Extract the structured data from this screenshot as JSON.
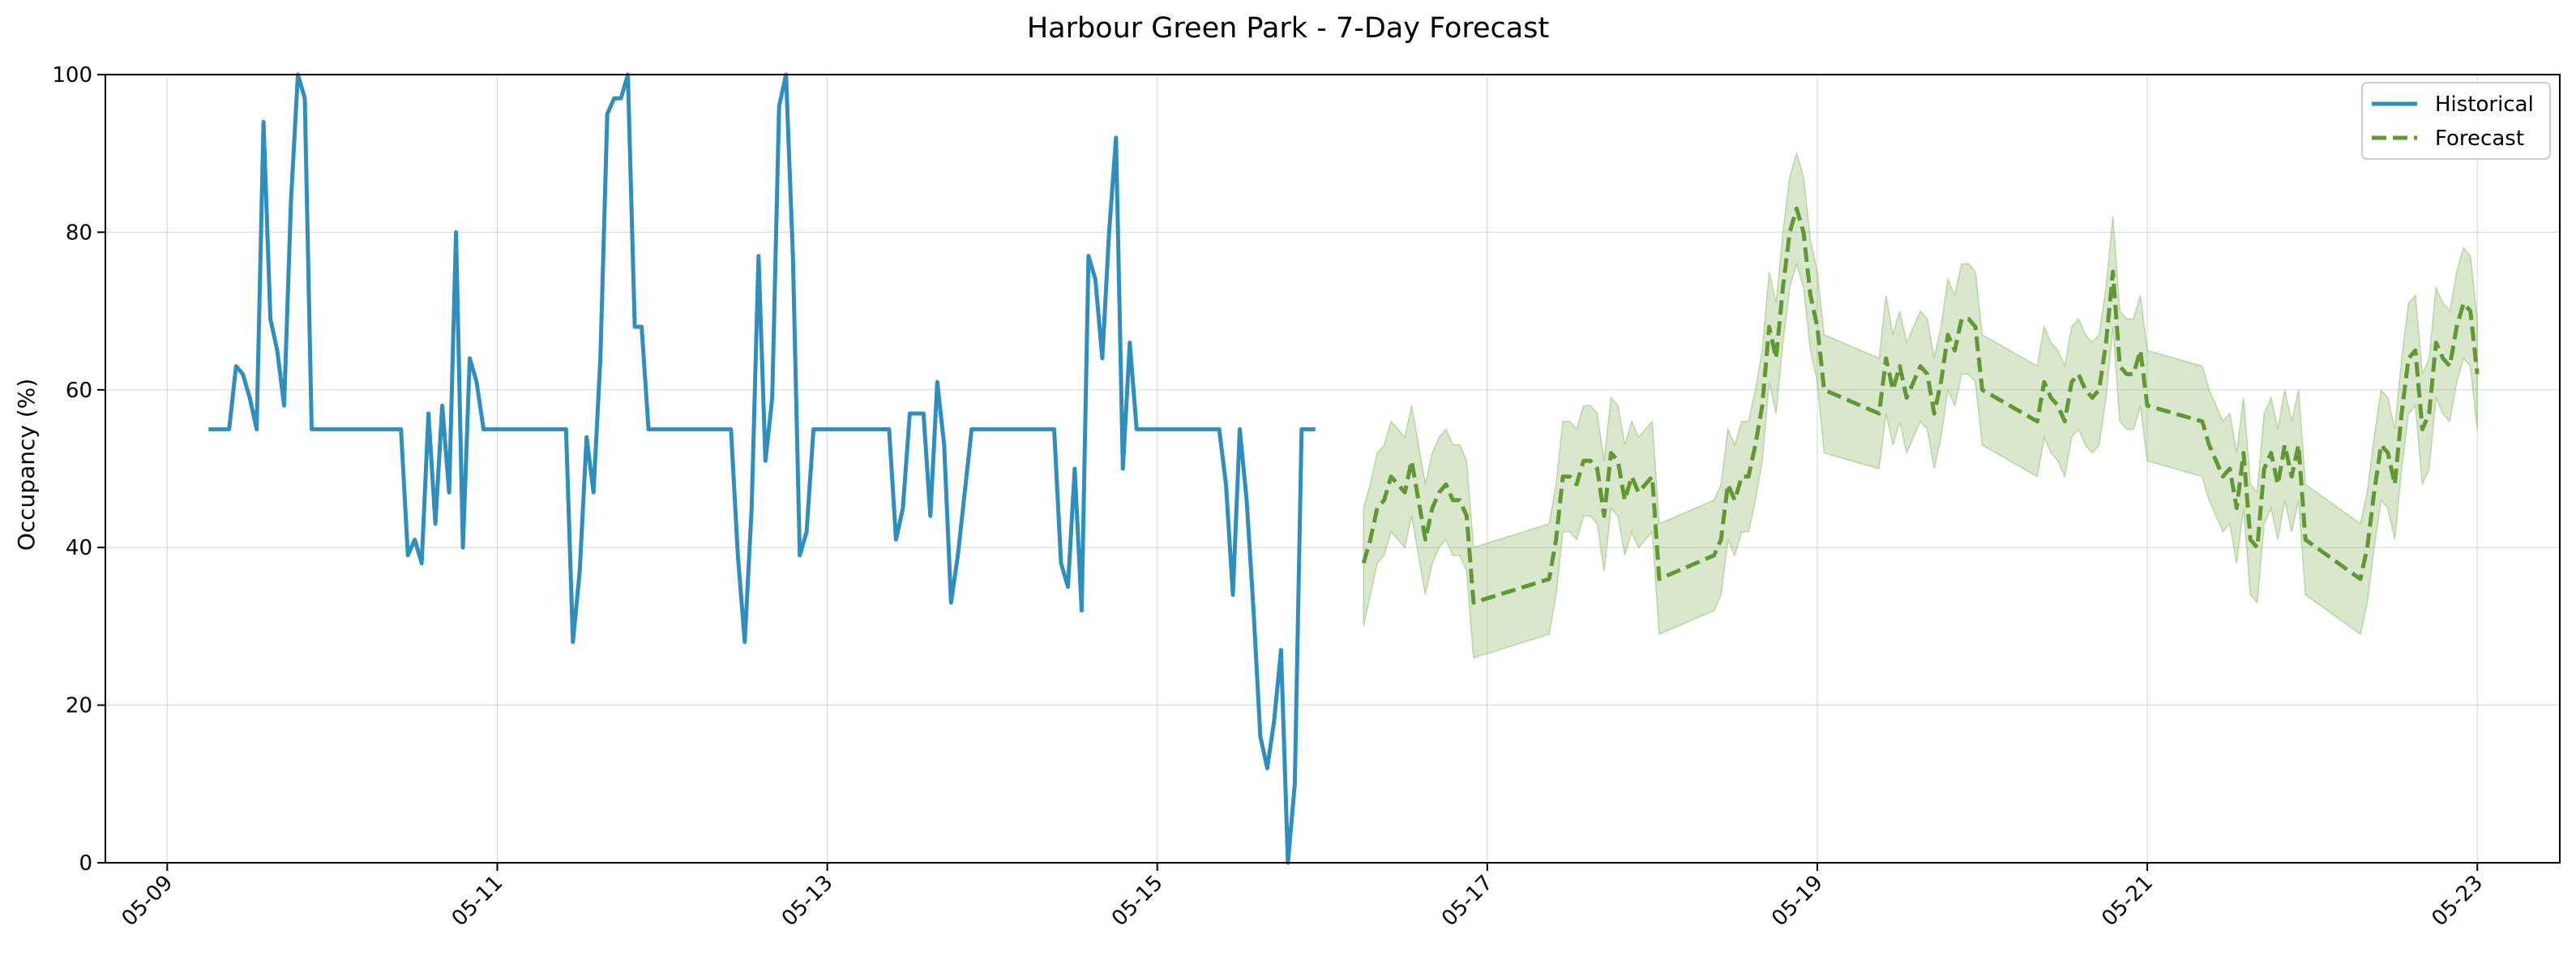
{
  "chart_data": {
    "type": "line",
    "title": "Harbour Green Park - 7-Day Forecast",
    "xlabel": "",
    "ylabel": "Occupancy (%)",
    "xlim": [
      "2025-05-08T15:00",
      "2025-05-23T12:00"
    ],
    "ylim": [
      0,
      100
    ],
    "grid": true,
    "legend_position": "top-right",
    "x_ticks": [
      "05-09",
      "05-11",
      "05-13",
      "05-15",
      "05-17",
      "05-19",
      "05-21",
      "05-23"
    ],
    "y_ticks": [
      0,
      20,
      40,
      60,
      80,
      100
    ],
    "colors": {
      "historical": "#2e8fbe",
      "forecast": "#629834",
      "band": "#8cb866"
    },
    "series": [
      {
        "name": "Historical",
        "style": "solid",
        "points": [
          [
            "2025-05-09T06:00",
            55
          ],
          [
            "2025-05-09T09:00",
            55
          ],
          [
            "2025-05-09T10:00",
            63
          ],
          [
            "2025-05-09T11:00",
            62
          ],
          [
            "2025-05-09T12:00",
            59
          ],
          [
            "2025-05-09T13:00",
            55
          ],
          [
            "2025-05-09T14:00",
            94
          ],
          [
            "2025-05-09T15:00",
            69
          ],
          [
            "2025-05-09T16:00",
            65
          ],
          [
            "2025-05-09T17:00",
            58
          ],
          [
            "2025-05-09T18:00",
            84
          ],
          [
            "2025-05-09T19:00",
            100
          ],
          [
            "2025-05-09T20:00",
            97
          ],
          [
            "2025-05-09T21:00",
            55
          ],
          [
            "2025-05-10T10:00",
            55
          ],
          [
            "2025-05-10T11:00",
            39
          ],
          [
            "2025-05-10T12:00",
            41
          ],
          [
            "2025-05-10T13:00",
            38
          ],
          [
            "2025-05-10T14:00",
            57
          ],
          [
            "2025-05-10T15:00",
            43
          ],
          [
            "2025-05-10T16:00",
            58
          ],
          [
            "2025-05-10T17:00",
            47
          ],
          [
            "2025-05-10T18:00",
            80
          ],
          [
            "2025-05-10T19:00",
            40
          ],
          [
            "2025-05-10T20:00",
            64
          ],
          [
            "2025-05-10T21:00",
            61
          ],
          [
            "2025-05-10T22:00",
            55
          ],
          [
            "2025-05-11T10:00",
            55
          ],
          [
            "2025-05-11T11:00",
            28
          ],
          [
            "2025-05-11T12:00",
            37
          ],
          [
            "2025-05-11T13:00",
            54
          ],
          [
            "2025-05-11T14:00",
            47
          ],
          [
            "2025-05-11T15:00",
            64
          ],
          [
            "2025-05-11T16:00",
            95
          ],
          [
            "2025-05-11T17:00",
            97
          ],
          [
            "2025-05-11T18:00",
            97
          ],
          [
            "2025-05-11T19:00",
            100
          ],
          [
            "2025-05-11T20:00",
            68
          ],
          [
            "2025-05-11T21:00",
            68
          ],
          [
            "2025-05-11T22:00",
            55
          ],
          [
            "2025-05-12T10:00",
            55
          ],
          [
            "2025-05-12T11:00",
            39
          ],
          [
            "2025-05-12T12:00",
            28
          ],
          [
            "2025-05-12T13:00",
            45
          ],
          [
            "2025-05-12T14:00",
            77
          ],
          [
            "2025-05-12T15:00",
            51
          ],
          [
            "2025-05-12T16:00",
            59
          ],
          [
            "2025-05-12T17:00",
            96
          ],
          [
            "2025-05-12T18:00",
            100
          ],
          [
            "2025-05-12T19:00",
            77
          ],
          [
            "2025-05-12T20:00",
            39
          ],
          [
            "2025-05-12T21:00",
            42
          ],
          [
            "2025-05-12T22:00",
            55
          ],
          [
            "2025-05-13T09:00",
            55
          ],
          [
            "2025-05-13T10:00",
            41
          ],
          [
            "2025-05-13T11:00",
            45
          ],
          [
            "2025-05-13T12:00",
            57
          ],
          [
            "2025-05-13T14:00",
            57
          ],
          [
            "2025-05-13T15:00",
            44
          ],
          [
            "2025-05-13T16:00",
            61
          ],
          [
            "2025-05-13T17:00",
            53
          ],
          [
            "2025-05-13T18:00",
            33
          ],
          [
            "2025-05-13T19:00",
            39
          ],
          [
            "2025-05-13T20:00",
            47
          ],
          [
            "2025-05-13T21:00",
            55
          ],
          [
            "2025-05-14T09:00",
            55
          ],
          [
            "2025-05-14T10:00",
            38
          ],
          [
            "2025-05-14T11:00",
            35
          ],
          [
            "2025-05-14T12:00",
            50
          ],
          [
            "2025-05-14T13:00",
            32
          ],
          [
            "2025-05-14T14:00",
            77
          ],
          [
            "2025-05-14T15:00",
            74
          ],
          [
            "2025-05-14T16:00",
            64
          ],
          [
            "2025-05-14T17:00",
            80
          ],
          [
            "2025-05-14T18:00",
            92
          ],
          [
            "2025-05-14T19:00",
            50
          ],
          [
            "2025-05-14T20:00",
            66
          ],
          [
            "2025-05-14T21:00",
            55
          ],
          [
            "2025-05-15T09:00",
            55
          ],
          [
            "2025-05-15T10:00",
            48
          ],
          [
            "2025-05-15T11:00",
            34
          ],
          [
            "2025-05-15T12:00",
            55
          ],
          [
            "2025-05-15T13:00",
            46
          ],
          [
            "2025-05-15T14:00",
            32
          ],
          [
            "2025-05-15T15:00",
            16
          ],
          [
            "2025-05-15T16:00",
            12
          ],
          [
            "2025-05-15T17:00",
            18
          ],
          [
            "2025-05-15T18:00",
            27
          ],
          [
            "2025-05-15T19:00",
            0
          ],
          [
            "2025-05-15T20:00",
            10
          ],
          [
            "2025-05-15T21:00",
            55
          ],
          [
            "2025-05-15T23:00",
            55
          ]
        ]
      },
      {
        "name": "Forecast",
        "style": "dashed",
        "points": [
          [
            "2025-05-16T06:00",
            38,
            30,
            45
          ],
          [
            "2025-05-16T07:00",
            41,
            34,
            48
          ],
          [
            "2025-05-16T08:00",
            45,
            38,
            52
          ],
          [
            "2025-05-16T09:00",
            46,
            39,
            53
          ],
          [
            "2025-05-16T10:00",
            49,
            42,
            56
          ],
          [
            "2025-05-16T11:00",
            48,
            41,
            55
          ],
          [
            "2025-05-16T12:00",
            47,
            40,
            54
          ],
          [
            "2025-05-16T13:00",
            51,
            44,
            58
          ],
          [
            "2025-05-16T14:00",
            46,
            39,
            53
          ],
          [
            "2025-05-16T15:00",
            41,
            34,
            48
          ],
          [
            "2025-05-16T16:00",
            45,
            38,
            52
          ],
          [
            "2025-05-16T17:00",
            47,
            40,
            54
          ],
          [
            "2025-05-16T18:00",
            48,
            41,
            55
          ],
          [
            "2025-05-16T19:00",
            46,
            39,
            53
          ],
          [
            "2025-05-16T20:00",
            46,
            39,
            53
          ],
          [
            "2025-05-16T21:00",
            44,
            37,
            51
          ],
          [
            "2025-05-16T22:00",
            33,
            26,
            40
          ],
          [
            "2025-05-17T09:00",
            36,
            29,
            43
          ],
          [
            "2025-05-17T10:00",
            41,
            34,
            48
          ],
          [
            "2025-05-17T11:00",
            49,
            42,
            56
          ],
          [
            "2025-05-17T12:00",
            49,
            42,
            56
          ],
          [
            "2025-05-17T13:00",
            48,
            41,
            55
          ],
          [
            "2025-05-17T14:00",
            51,
            44,
            58
          ],
          [
            "2025-05-17T15:00",
            51,
            44,
            58
          ],
          [
            "2025-05-17T16:00",
            50,
            43,
            57
          ],
          [
            "2025-05-17T17:00",
            44,
            37,
            51
          ],
          [
            "2025-05-17T18:00",
            52,
            45,
            59
          ],
          [
            "2025-05-17T19:00",
            51,
            44,
            58
          ],
          [
            "2025-05-17T20:00",
            46,
            39,
            53
          ],
          [
            "2025-05-17T21:00",
            49,
            42,
            56
          ],
          [
            "2025-05-17T22:00",
            47,
            40,
            54
          ],
          [
            "2025-05-17T23:00",
            48,
            41,
            55
          ],
          [
            "2025-05-18T00:00",
            49,
            42,
            56
          ],
          [
            "2025-05-18T01:00",
            36,
            29,
            43
          ],
          [
            "2025-05-18T09:00",
            39,
            32,
            46
          ],
          [
            "2025-05-18T10:00",
            41,
            34,
            48
          ],
          [
            "2025-05-18T11:00",
            48,
            41,
            55
          ],
          [
            "2025-05-18T12:00",
            46,
            39,
            53
          ],
          [
            "2025-05-18T13:00",
            49,
            42,
            56
          ],
          [
            "2025-05-18T14:00",
            49,
            42,
            56
          ],
          [
            "2025-05-18T15:00",
            53,
            46,
            60
          ],
          [
            "2025-05-18T16:00",
            58,
            51,
            65
          ],
          [
            "2025-05-18T17:00",
            68,
            61,
            75
          ],
          [
            "2025-05-18T18:00",
            64,
            57,
            71
          ],
          [
            "2025-05-18T19:00",
            73,
            66,
            80
          ],
          [
            "2025-05-18T20:00",
            80,
            73,
            87
          ],
          [
            "2025-05-18T21:00",
            83,
            76,
            90
          ],
          [
            "2025-05-18T22:00",
            80,
            73,
            87
          ],
          [
            "2025-05-18T23:00",
            72,
            65,
            79
          ],
          [
            "2025-05-19T00:00",
            68,
            61,
            75
          ],
          [
            "2025-05-19T01:00",
            60,
            52,
            67
          ],
          [
            "2025-05-19T09:00",
            57,
            50,
            64
          ],
          [
            "2025-05-19T10:00",
            64,
            57,
            72
          ],
          [
            "2025-05-19T11:00",
            60,
            53,
            67
          ],
          [
            "2025-05-19T12:00",
            63,
            56,
            70
          ],
          [
            "2025-05-19T13:00",
            59,
            52,
            66
          ],
          [
            "2025-05-19T14:00",
            61,
            54,
            68
          ],
          [
            "2025-05-19T15:00",
            63,
            56,
            70
          ],
          [
            "2025-05-19T16:00",
            62,
            55,
            69
          ],
          [
            "2025-05-19T17:00",
            57,
            50,
            64
          ],
          [
            "2025-05-19T18:00",
            61,
            54,
            68
          ],
          [
            "2025-05-19T19:00",
            67,
            60,
            74
          ],
          [
            "2025-05-19T20:00",
            65,
            58,
            72
          ],
          [
            "2025-05-19T21:00",
            69,
            62,
            76
          ],
          [
            "2025-05-19T22:00",
            69,
            62,
            76
          ],
          [
            "2025-05-19T23:00",
            68,
            61,
            75
          ],
          [
            "2025-05-20T00:00",
            60,
            53,
            67
          ],
          [
            "2025-05-20T08:00",
            56,
            49,
            63
          ],
          [
            "2025-05-20T09:00",
            61,
            54,
            68
          ],
          [
            "2025-05-20T10:00",
            59,
            52,
            66
          ],
          [
            "2025-05-20T11:00",
            58,
            51,
            65
          ],
          [
            "2025-05-20T12:00",
            56,
            49,
            63
          ],
          [
            "2025-05-20T13:00",
            61,
            54,
            68
          ],
          [
            "2025-05-20T14:00",
            62,
            55,
            69
          ],
          [
            "2025-05-20T15:00",
            60,
            53,
            67
          ],
          [
            "2025-05-20T16:00",
            59,
            52,
            66
          ],
          [
            "2025-05-20T17:00",
            60,
            53,
            67
          ],
          [
            "2025-05-20T18:00",
            66,
            59,
            73
          ],
          [
            "2025-05-20T19:00",
            75,
            68,
            82
          ],
          [
            "2025-05-20T20:00",
            63,
            56,
            70
          ],
          [
            "2025-05-20T21:00",
            62,
            55,
            69
          ],
          [
            "2025-05-20T22:00",
            62,
            55,
            69
          ],
          [
            "2025-05-20T23:00",
            65,
            58,
            72
          ],
          [
            "2025-05-21T00:00",
            58,
            51,
            65
          ],
          [
            "2025-05-21T08:00",
            56,
            49,
            63
          ],
          [
            "2025-05-21T09:00",
            53,
            46,
            60
          ],
          [
            "2025-05-21T10:00",
            51,
            44,
            58
          ],
          [
            "2025-05-21T11:00",
            49,
            42,
            56
          ],
          [
            "2025-05-21T12:00",
            50,
            43,
            57
          ],
          [
            "2025-05-21T13:00",
            45,
            38,
            52
          ],
          [
            "2025-05-21T14:00",
            52,
            45,
            59
          ],
          [
            "2025-05-21T15:00",
            41,
            34,
            48
          ],
          [
            "2025-05-21T16:00",
            40,
            33,
            47
          ],
          [
            "2025-05-21T17:00",
            50,
            43,
            57
          ],
          [
            "2025-05-21T18:00",
            52,
            45,
            59
          ],
          [
            "2025-05-21T19:00",
            48,
            41,
            55
          ],
          [
            "2025-05-21T20:00",
            53,
            46,
            60
          ],
          [
            "2025-05-21T21:00",
            49,
            42,
            56
          ],
          [
            "2025-05-21T22:00",
            53,
            46,
            60
          ],
          [
            "2025-05-21T23:00",
            41,
            34,
            48
          ],
          [
            "2025-05-22T07:00",
            36,
            29,
            43
          ],
          [
            "2025-05-22T08:00",
            40,
            33,
            47
          ],
          [
            "2025-05-22T09:00",
            47,
            40,
            54
          ],
          [
            "2025-05-22T10:00",
            53,
            46,
            60
          ],
          [
            "2025-05-22T11:00",
            52,
            45,
            59
          ],
          [
            "2025-05-22T12:00",
            48,
            41,
            55
          ],
          [
            "2025-05-22T13:00",
            57,
            50,
            64
          ],
          [
            "2025-05-22T14:00",
            64,
            57,
            71
          ],
          [
            "2025-05-22T15:00",
            65,
            58,
            72
          ],
          [
            "2025-05-22T16:00",
            55,
            48,
            62
          ],
          [
            "2025-05-22T17:00",
            57,
            50,
            64
          ],
          [
            "2025-05-22T18:00",
            66,
            59,
            73
          ],
          [
            "2025-05-22T19:00",
            64,
            57,
            71
          ],
          [
            "2025-05-22T20:00",
            63,
            56,
            70
          ],
          [
            "2025-05-22T21:00",
            68,
            61,
            75
          ],
          [
            "2025-05-22T22:00",
            71,
            64,
            78
          ],
          [
            "2025-05-22T23:00",
            70,
            63,
            77
          ],
          [
            "2025-05-23T00:00",
            62,
            55,
            69
          ]
        ]
      }
    ]
  }
}
